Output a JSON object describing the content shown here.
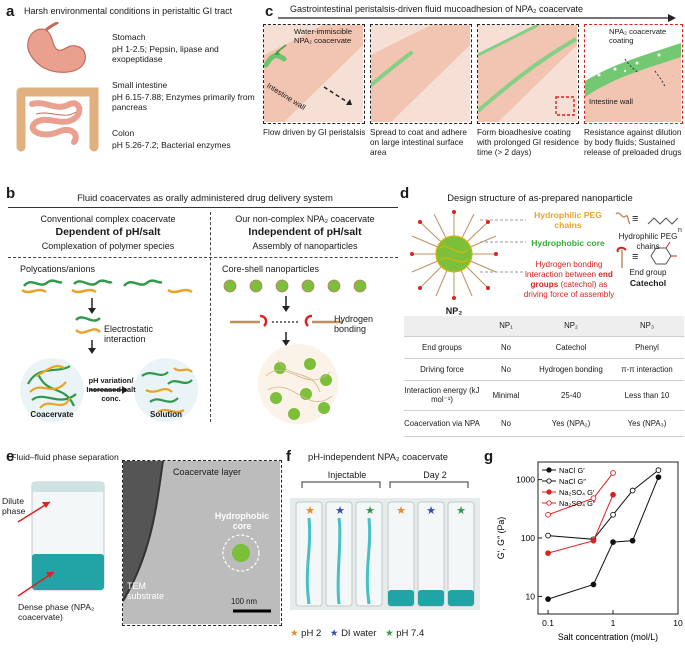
{
  "panels": {
    "a": "a",
    "b": "b",
    "c": "c",
    "d": "d",
    "e": "e",
    "f": "f",
    "g": "g"
  },
  "a": {
    "title": "Harsh environmental conditions in peristaltic GI tract",
    "stomach_name": "Stomach",
    "stomach_desc": "pH 1-2.5; Pepsin, lipase and exopeptidase",
    "intestine_name": "Small intestine",
    "intestine_desc": "pH 6.15-7.88; Enzymes primarily from pancreas",
    "colon_name": "Colon",
    "colon_desc": "pH 5.26-7.2; Bacterial enzymes"
  },
  "c": {
    "title": "Gastrointestinal peristalsis-driven fluid mucoadhesion of NPA₂ coacervate",
    "box1_label_coacervate": "Water-immiscible NPA₂ coacervate",
    "box1_label_wall": "Intestine wall",
    "box4_label_coating": "NPA₂ coacervate coating",
    "box4_label_wall": "Intestine wall",
    "cap1": "Flow driven by GI peristalsis",
    "cap2": "Spread to coat and adhere on large intestinal surface area",
    "cap3": "Form bioadhesive coating with prolonged GI residence time (> 2 days)",
    "cap4": "Resistance against dilution by body fluids; Sustained release of preloaded drugs"
  },
  "b": {
    "title": "Fluid coacervates as orally administered drug delivery system",
    "left_head1": "Conventional complex coacervate",
    "left_head2": "Dependent of pH/salt",
    "left_head3": "Complexation of polymer species",
    "right_head1": "Our non-complex NPA₂ coacervate",
    "right_head2": "Independent of pH/salt",
    "right_head3": "Assembly of nanoparticles",
    "polyions": "Polycations/anions",
    "electrostatic": "Electrostatic interaction",
    "arrow_text": "pH variation/ Increased salt conc.",
    "coacervate": "Coacervate",
    "solution": "Solution",
    "coreshell": "Core-shell nanoparticles",
    "hbond": "Hydrogen bonding"
  },
  "d": {
    "title": "Design structure of as-prepared nanoparticle",
    "np_label": "NP₂",
    "peg_label": "Hydrophilic PEG chains",
    "core_label": "Hydrophobic core",
    "hbond_label_pre": "Hydrogen bonding interaction between ",
    "hbond_label_bold": "end groups",
    "hbond_label_post": " (catechol) as driving force of assembly",
    "legend_peg": "Hydrophilic PEG chains",
    "legend_end1": "End group",
    "legend_end2": "Catechol",
    "legend_n": "n",
    "equiv": "≡",
    "table": {
      "header": [
        "",
        "NP₁",
        "NP₂",
        "NP₃"
      ],
      "rows": [
        [
          "End groups",
          "No",
          "Catechol",
          "Phenyl"
        ],
        [
          "Driving force",
          "No",
          "Hydrogen bonding",
          "π-π interaction"
        ],
        [
          "Interaction energy (kJ mol⁻¹)",
          "Minimal",
          "25-40",
          "Less than 10"
        ],
        [
          "Coacervation via NPA",
          "No",
          "Yes (NPA₂)",
          "Yes (NPA₃)"
        ]
      ]
    }
  },
  "e": {
    "title": "Fluid–fluid phase separation",
    "dilute": "Dilute phase",
    "dense": "Dense phase (NPA₂ coacervate)",
    "coacervate_layer": "Coacervate layer",
    "core": "Hydrophobic core",
    "substrate": "TEM substrate",
    "scale": "100 nm"
  },
  "f": {
    "title": "pH-independent NPA₂ coacervate",
    "injectable": "Injectable",
    "day2": "Day 2",
    "legend": [
      {
        "star": "★",
        "label": "pH 2",
        "color": "#e8892b"
      },
      {
        "star": "★",
        "label": "DI water",
        "color": "#2f4fa8"
      },
      {
        "star": "★",
        "label": "pH 7.4",
        "color": "#2e9a4a"
      }
    ]
  },
  "chart_data": {
    "type": "line",
    "xlabel": "Salt concentration (mol/L)",
    "ylabel": "G′, G″ (Pa)",
    "xscale": "log",
    "yscale": "log",
    "xlim": [
      0.07,
      10
    ],
    "ylim": [
      5,
      2000
    ],
    "xticks": [
      0.1,
      1,
      10
    ],
    "xtick_labels": [
      "0.1",
      "1",
      "10"
    ],
    "yticks": [
      10,
      100,
      1000
    ],
    "ytick_labels": [
      "10",
      "100",
      "1000"
    ],
    "legend_position": "top-left",
    "series": [
      {
        "name": "NaCl G′",
        "color": "#111111",
        "filled": true,
        "x": [
          0.1,
          0.5,
          1,
          2,
          5
        ],
        "y": [
          9,
          16,
          85,
          90,
          1100
        ]
      },
      {
        "name": "NaCl G″",
        "color": "#111111",
        "filled": false,
        "x": [
          0.1,
          0.5,
          1,
          2,
          5
        ],
        "y": [
          110,
          95,
          250,
          650,
          1450
        ]
      },
      {
        "name": "Na₂SO₄ G′",
        "color": "#d8231f",
        "filled": true,
        "x": [
          0.1,
          0.5,
          1
        ],
        "y": [
          55,
          90,
          550
        ]
      },
      {
        "name": "Na₂SO₄ G″",
        "color": "#d8231f",
        "filled": false,
        "x": [
          0.1,
          0.5,
          1
        ],
        "y": [
          250,
          480,
          1300
        ]
      }
    ]
  }
}
